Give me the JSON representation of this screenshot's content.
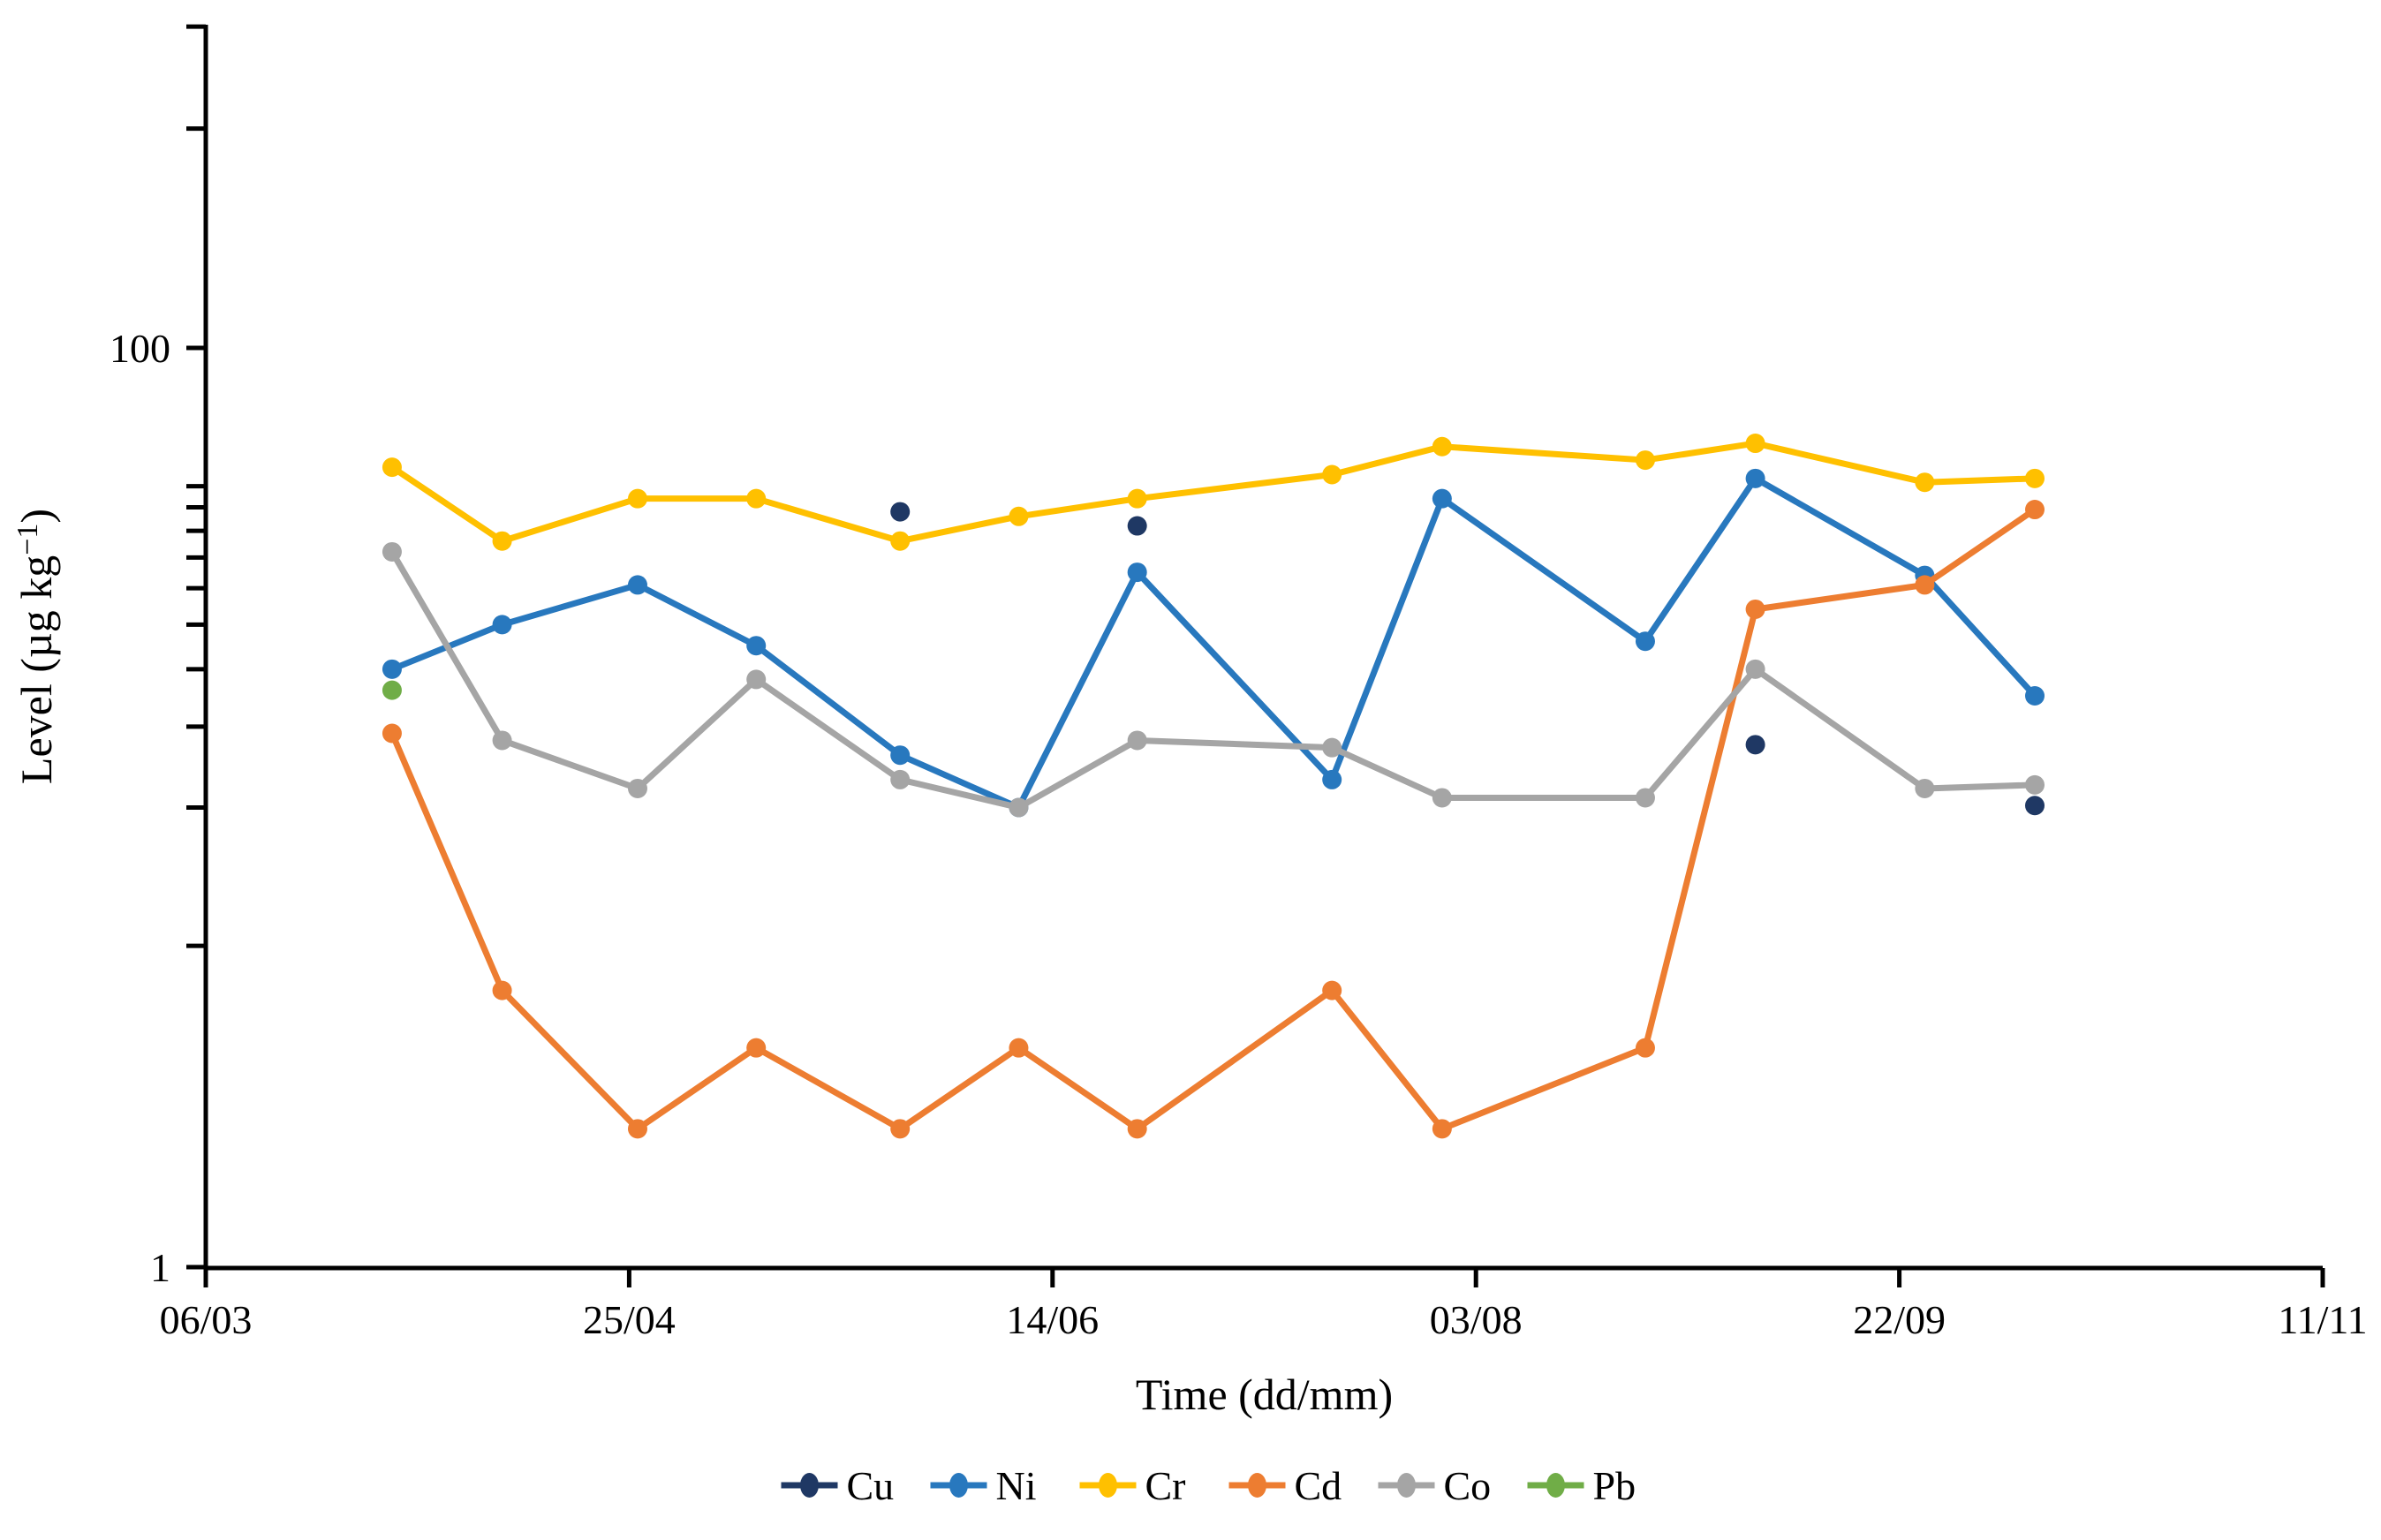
{
  "figure": {
    "background": "#FFFFFF"
  },
  "chart_data": {
    "type": "line",
    "title": "",
    "xlabel": "Time (dd/mm)",
    "ylabel": "Level (µg kg−1)",
    "ylabel_parts": {
      "main": "Level (µg kg",
      "sup": "−1",
      "close": ")"
    },
    "y_scale": "log10",
    "ylim": [
      1,
      500
    ],
    "grid": false,
    "legend_position": "bottom-center",
    "y_axis": {
      "ticks": [
        {
          "value": 100,
          "label": "100"
        },
        {
          "value": 1,
          "label": "1"
        }
      ],
      "minor_tick_values": [
        500,
        300,
        50,
        45,
        40,
        35,
        30,
        25,
        20,
        15,
        10,
        5
      ]
    },
    "x_axis": {
      "tick_interval_days": 50,
      "ticks": [
        {
          "day": 0,
          "label": "06/03"
        },
        {
          "day": 50,
          "label": "25/04"
        },
        {
          "day": 100,
          "label": "14/06"
        },
        {
          "day": 150,
          "label": "03/08"
        },
        {
          "day": 200,
          "label": "22/09"
        },
        {
          "day": 250,
          "label": "11/11"
        }
      ]
    },
    "series": [
      {
        "name": "Cu",
        "color": "#1F3864",
        "line": false,
        "points": [
          {
            "date": "27/05",
            "day": 82,
            "value": 44
          },
          {
            "date": "24/06",
            "day": 110,
            "value": 41
          },
          {
            "date": "05/09",
            "day": 183,
            "value": 13.7
          },
          {
            "date": "08/10",
            "day": 216,
            "value": 10.1
          }
        ]
      },
      {
        "name": "Ni",
        "color": "#2878BE",
        "line": true,
        "points": [
          {
            "date": "28/03",
            "day": 22,
            "value": 20
          },
          {
            "date": "10/04",
            "day": 35,
            "value": 25
          },
          {
            "date": "26/04",
            "day": 51,
            "value": 30.5
          },
          {
            "date": "10/05",
            "day": 65,
            "value": 22.5
          },
          {
            "date": "27/05",
            "day": 82,
            "value": 13
          },
          {
            "date": "10/06",
            "day": 96,
            "value": 10
          },
          {
            "date": "24/06",
            "day": 110,
            "value": 32.5
          },
          {
            "date": "17/07",
            "day": 133,
            "value": 11.5
          },
          {
            "date": "30/07",
            "day": 146,
            "value": 47
          },
          {
            "date": "23/08",
            "day": 170,
            "value": 23
          },
          {
            "date": "05/09",
            "day": 183,
            "value": 52
          },
          {
            "date": "25/09",
            "day": 203,
            "value": 32
          },
          {
            "date": "08/10",
            "day": 216,
            "value": 17.5
          }
        ]
      },
      {
        "name": "Cr",
        "color": "#FFC000",
        "line": true,
        "points": [
          {
            "date": "28/03",
            "day": 22,
            "value": 55
          },
          {
            "date": "10/04",
            "day": 35,
            "value": 38
          },
          {
            "date": "26/04",
            "day": 51,
            "value": 47
          },
          {
            "date": "10/05",
            "day": 65,
            "value": 47
          },
          {
            "date": "27/05",
            "day": 82,
            "value": 38
          },
          {
            "date": "10/06",
            "day": 96,
            "value": 43
          },
          {
            "date": "24/06",
            "day": 110,
            "value": 47
          },
          {
            "date": "17/07",
            "day": 133,
            "value": 53
          },
          {
            "date": "30/07",
            "day": 146,
            "value": 61
          },
          {
            "date": "23/08",
            "day": 170,
            "value": 57
          },
          {
            "date": "05/09",
            "day": 183,
            "value": 62
          },
          {
            "date": "25/09",
            "day": 203,
            "value": 51
          },
          {
            "date": "08/10",
            "day": 216,
            "value": 52
          }
        ]
      },
      {
        "name": "Cd",
        "color": "#ED7D31",
        "line": true,
        "points": [
          {
            "date": "28/03",
            "day": 22,
            "value": 14.5
          },
          {
            "date": "10/04",
            "day": 35,
            "value": 4
          },
          {
            "date": "26/04",
            "day": 51,
            "value": 2
          },
          {
            "date": "10/05",
            "day": 65,
            "value": 3
          },
          {
            "date": "27/05",
            "day": 82,
            "value": 2
          },
          {
            "date": "10/06",
            "day": 96,
            "value": 3
          },
          {
            "date": "24/06",
            "day": 110,
            "value": 2
          },
          {
            "date": "17/07",
            "day": 133,
            "value": 4
          },
          {
            "date": "30/07",
            "day": 146,
            "value": 2
          },
          {
            "date": "23/08",
            "day": 170,
            "value": 3
          },
          {
            "date": "05/09",
            "day": 183,
            "value": 27
          },
          {
            "date": "25/09",
            "day": 203,
            "value": 30.5
          },
          {
            "date": "08/10",
            "day": 216,
            "value": 44.5
          }
        ]
      },
      {
        "name": "Co",
        "color": "#A5A5A5",
        "line": true,
        "points": [
          {
            "date": "28/03",
            "day": 22,
            "value": 36
          },
          {
            "date": "10/04",
            "day": 35,
            "value": 14
          },
          {
            "date": "26/04",
            "day": 51,
            "value": 11
          },
          {
            "date": "10/05",
            "day": 65,
            "value": 19
          },
          {
            "date": "27/05",
            "day": 82,
            "value": 11.5
          },
          {
            "date": "10/06",
            "day": 96,
            "value": 10
          },
          {
            "date": "24/06",
            "day": 110,
            "value": 14
          },
          {
            "date": "17/07",
            "day": 133,
            "value": 13.5
          },
          {
            "date": "30/07",
            "day": 146,
            "value": 10.5
          },
          {
            "date": "23/08",
            "day": 170,
            "value": 10.5
          },
          {
            "date": "05/09",
            "day": 183,
            "value": 20
          },
          {
            "date": "25/09",
            "day": 203,
            "value": 11
          },
          {
            "date": "08/10",
            "day": 216,
            "value": 11.2
          }
        ]
      },
      {
        "name": "Pb",
        "color": "#70AD47",
        "line": false,
        "points": [
          {
            "date": "28/03",
            "day": 22,
            "value": 18
          }
        ]
      }
    ]
  }
}
